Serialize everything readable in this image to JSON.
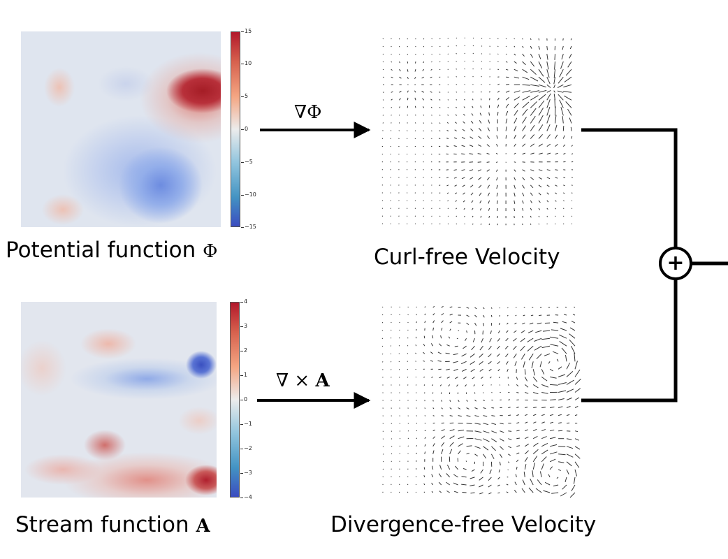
{
  "top_row": {
    "left_label": "Potential function",
    "left_symbol": "Φ",
    "operator": "∇Φ",
    "right_label": "Curl-free Velocity",
    "colorbar_ticks": [
      "15",
      "10",
      "5",
      "0",
      "−5",
      "−10",
      "−15"
    ]
  },
  "bottom_row": {
    "left_label": "Stream function",
    "left_symbol": "A",
    "operator_prefix": "∇ × ",
    "operator_symbol": "A",
    "right_label": "Divergence-free Velocity",
    "colorbar_ticks": [
      "4",
      "3",
      "2",
      "1",
      "0",
      "−1",
      "−2",
      "−3",
      "−4"
    ]
  },
  "combine_symbol": "+",
  "colors": {
    "positive": "#b2182b",
    "negative": "#3b4cc0",
    "neutral": "#e3e8f0",
    "line": "#000000"
  }
}
